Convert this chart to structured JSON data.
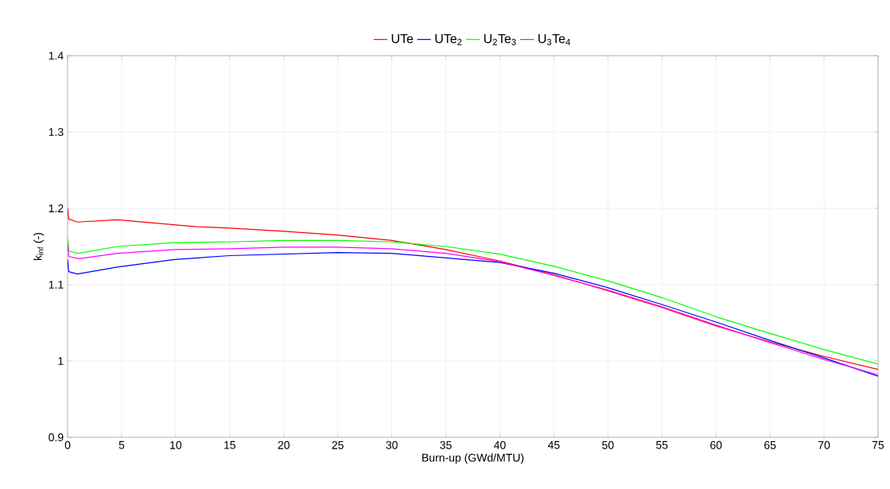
{
  "chart_data": {
    "type": "line",
    "xlabel": "Burn-up (GWd/MTU)",
    "ylabel": "k$_{inf}$ (-)",
    "xlim": [
      0,
      75
    ],
    "ylim": [
      0.9,
      1.4
    ],
    "xticks": [
      0,
      5,
      10,
      15,
      20,
      25,
      30,
      35,
      40,
      45,
      50,
      55,
      60,
      65,
      70,
      75
    ],
    "yticks": [
      0.9,
      1,
      1.1,
      1.2,
      1.3,
      1.4
    ],
    "grid": true,
    "legend": "top",
    "series": [
      {
        "name": "UTe",
        "color": "#ff0000",
        "x": [
          0,
          0.1,
          0.9,
          4.6,
          11.9,
          15,
          20,
          25,
          30,
          35,
          40,
          45,
          50,
          55,
          60,
          65,
          70,
          75
        ],
        "values": [
          1.2,
          1.186,
          1.182,
          1.185,
          1.176,
          1.174,
          1.17,
          1.165,
          1.158,
          1.146,
          1.131,
          1.113,
          1.092,
          1.07,
          1.046,
          1.025,
          1.006,
          0.989
        ]
      },
      {
        "name": "UTe$_{2}$",
        "color": "#0000ff",
        "x": [
          0,
          0.1,
          0.9,
          4.6,
          9.9,
          15,
          20,
          25,
          30,
          35,
          40,
          45,
          50,
          55,
          60,
          65,
          70,
          75
        ],
        "values": [
          1.133,
          1.117,
          1.114,
          1.123,
          1.133,
          1.138,
          1.14,
          1.142,
          1.141,
          1.135,
          1.129,
          1.115,
          1.096,
          1.074,
          1.051,
          1.027,
          1.004,
          0.98
        ]
      },
      {
        "name": "U$_{2}$Te$_{3}$",
        "color": "#00ff00",
        "x": [
          0,
          0.1,
          1,
          4.6,
          9.9,
          15,
          20,
          25,
          30,
          35,
          40,
          45,
          50,
          55,
          60,
          65,
          70,
          75
        ],
        "values": [
          1.16,
          1.144,
          1.141,
          1.15,
          1.155,
          1.156,
          1.158,
          1.158,
          1.156,
          1.15,
          1.14,
          1.124,
          1.105,
          1.083,
          1.058,
          1.036,
          1.015,
          0.996
        ]
      },
      {
        "name": "U$_{3}$Te$_{4}$",
        "color": "#ff00ff",
        "x": [
          0,
          0.1,
          1,
          4.6,
          9.9,
          15,
          20,
          25,
          30,
          35,
          40,
          45,
          50,
          55,
          60,
          65,
          70,
          75
        ],
        "values": [
          1.154,
          1.137,
          1.134,
          1.141,
          1.146,
          1.147,
          1.149,
          1.149,
          1.147,
          1.141,
          1.13,
          1.112,
          1.093,
          1.071,
          1.047,
          1.024,
          1.002,
          0.982
        ]
      }
    ]
  }
}
